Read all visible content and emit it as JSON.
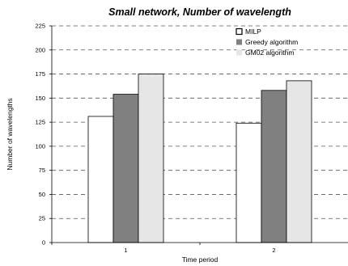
{
  "chart_data": {
    "type": "bar",
    "title": "Small network, Number of wavelength",
    "xlabel": "Time period",
    "ylabel": "Number of wavelengths",
    "categories": [
      "1",
      "2"
    ],
    "ylim": [
      0,
      225
    ],
    "yticks": [
      "0",
      "25",
      "50",
      "75",
      "100",
      "125",
      "150",
      "175",
      "200",
      "225"
    ],
    "grid": "horizontal dashed",
    "legend_position": "top-right",
    "series": [
      {
        "name": "MILP",
        "values": [
          131,
          124
        ],
        "color": "#ffffff"
      },
      {
        "name": "Greedy algorithm",
        "values": [
          154,
          158
        ],
        "color": "#808080"
      },
      {
        "name": "GM02 algorithm",
        "values": [
          175,
          168
        ],
        "color": "#e6e6e6"
      }
    ]
  }
}
